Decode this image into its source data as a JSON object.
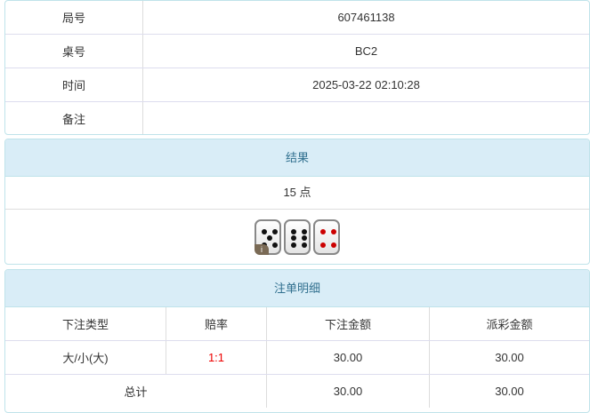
{
  "info": [
    {
      "label": "局号",
      "value": "607461138"
    },
    {
      "label": "桌号",
      "value": "BC2"
    },
    {
      "label": "时间",
      "value": "2025-03-22 02:10:28"
    },
    {
      "label": "备注",
      "value": ""
    }
  ],
  "result": {
    "title": "结果",
    "points": "15 点",
    "dice": [
      5,
      6,
      4
    ],
    "dice_colors": [
      "#111111",
      "#111111",
      "#cc0000"
    ],
    "info_badge": "i"
  },
  "bets": {
    "title": "注单明细",
    "headers": [
      "下注类型",
      "赔率",
      "下注金额",
      "派彩金额"
    ],
    "rows": [
      {
        "type": "大/小(大)",
        "odds": "1:1",
        "amount": "30.00",
        "payout": "30.00"
      }
    ],
    "total": {
      "label": "总计",
      "amount": "30.00",
      "payout": "30.00"
    },
    "odds_color": "#ee0000"
  }
}
